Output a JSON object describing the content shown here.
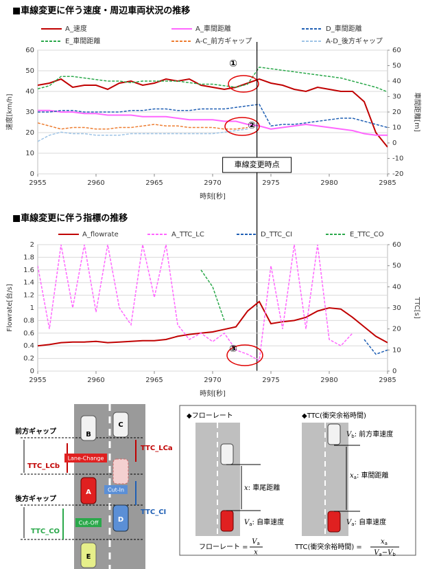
{
  "chart_data": [
    {
      "type": "line",
      "title": "■車線変更に伴う速度・周辺車両状況の推移",
      "x_label": "時刻[秒]",
      "y_label": "速度[km/h]",
      "y2_label": "車間距離[m]",
      "x": [
        2955,
        2956,
        2957,
        2958,
        2959,
        2960,
        2961,
        2962,
        2963,
        2964,
        2965,
        2966,
        2967,
        2968,
        2969,
        2970,
        2971,
        2972,
        2973,
        2974,
        2975,
        2976,
        2977,
        2978,
        2979,
        2980,
        2981,
        2982,
        2983,
        2984,
        2985
      ],
      "xlim": [
        2955,
        2985
      ],
      "xticks": [
        2955,
        2960,
        2965,
        2970,
        2975,
        2980,
        2985
      ],
      "ylim": [
        0,
        60
      ],
      "yticks": [
        0,
        10,
        20,
        30,
        40,
        50,
        60
      ],
      "y2lim": [
        -20,
        60
      ],
      "y2ticks": [
        -20,
        -10,
        0,
        10,
        20,
        30,
        40,
        50,
        60
      ],
      "series": [
        {
          "name": "A_速度",
          "color": "#c00000",
          "style": "solid",
          "values": [
            43,
            44,
            46,
            42,
            43,
            43,
            41,
            44,
            45,
            43,
            44,
            46,
            45,
            46,
            43,
            42,
            41,
            42,
            44,
            46,
            44,
            43,
            41,
            40,
            42,
            41,
            40,
            40,
            35,
            20,
            13
          ]
        },
        {
          "name": "A_車間距離",
          "color": "#ff66ff",
          "style": "solid",
          "axis": "y2",
          "values": [
            21,
            21,
            20,
            20,
            19,
            19,
            18,
            18,
            18,
            17,
            17,
            17,
            16,
            15,
            15,
            15,
            14,
            14,
            12,
            11,
            9,
            10,
            11,
            12,
            11,
            10,
            9,
            8,
            6,
            5,
            5
          ]
        },
        {
          "name": "D_車間距離",
          "color": "#1f5fb4",
          "style": "dashed",
          "axis": "y2",
          "values": [
            20,
            20,
            21,
            21,
            20,
            20,
            20,
            20,
            21,
            21,
            22,
            22,
            21,
            21,
            22,
            22,
            22,
            23,
            24,
            25,
            11,
            12,
            12,
            13,
            14,
            15,
            16,
            16,
            14,
            12,
            10
          ]
        },
        {
          "name": "E_車間距離",
          "color": "#2aa84a",
          "style": "dashed",
          "axis": "y2",
          "values": [
            35,
            37,
            43,
            43,
            42,
            41,
            40,
            40,
            39,
            40,
            40,
            40,
            40,
            39,
            38,
            38,
            37,
            36,
            38,
            49,
            48,
            47,
            46,
            45,
            44,
            43,
            42,
            40,
            38,
            36,
            33
          ]
        },
        {
          "name": "A-C_前方ギャップ",
          "color": "#ed7d31",
          "style": "dashed",
          "axis": "y2",
          "values": [
            13,
            11,
            9,
            10,
            10,
            9,
            9,
            10,
            10,
            11,
            12,
            11,
            11,
            10,
            10,
            10,
            9,
            9,
            10,
            null,
            null,
            null,
            null,
            null,
            null,
            null,
            null,
            null,
            null,
            null,
            null
          ]
        },
        {
          "name": "A-D_後方ギャップ",
          "color": "#9dc3e6",
          "style": "dashed",
          "axis": "y2",
          "values": [
            1,
            5,
            7,
            6,
            6,
            5,
            5,
            5,
            6,
            6,
            6,
            6,
            6,
            6,
            6,
            6,
            7,
            8,
            9,
            null,
            null,
            null,
            null,
            null,
            null,
            null,
            null,
            null,
            null,
            null,
            null
          ]
        }
      ],
      "annotations": [
        "①",
        "②"
      ],
      "lane_change": {
        "label": "車線変更時点",
        "x": 2973.8
      }
    },
    {
      "type": "line",
      "title": "■車線変更に伴う指標の推移",
      "x_label": "時刻[秒]",
      "y_label": "Flowrate[台/s]",
      "y2_label": "TTC[s]",
      "x": [
        2955,
        2956,
        2957,
        2958,
        2959,
        2960,
        2961,
        2962,
        2963,
        2964,
        2965,
        2966,
        2967,
        2968,
        2969,
        2970,
        2971,
        2972,
        2973,
        2974,
        2975,
        2976,
        2977,
        2978,
        2979,
        2980,
        2981,
        2982,
        2983,
        2984,
        2985
      ],
      "xlim": [
        2955,
        2985
      ],
      "xticks": [
        2955,
        2960,
        2965,
        2970,
        2975,
        2980,
        2985
      ],
      "ylim": [
        0,
        2
      ],
      "yticks": [
        0,
        0.2,
        0.4,
        0.6,
        0.8,
        1,
        1.2,
        1.4,
        1.6,
        1.8,
        2
      ],
      "y2lim": [
        0,
        60
      ],
      "y2ticks": [
        0,
        10,
        20,
        30,
        40,
        50,
        60
      ],
      "series": [
        {
          "name": "A_flowrate",
          "color": "#c00000",
          "style": "solid",
          "values": [
            0.4,
            0.42,
            0.45,
            0.46,
            0.46,
            0.47,
            0.45,
            0.46,
            0.47,
            0.48,
            0.48,
            0.5,
            0.55,
            0.58,
            0.6,
            0.62,
            0.66,
            0.7,
            0.95,
            1.1,
            0.75,
            0.78,
            0.8,
            0.85,
            0.95,
            1.0,
            0.98,
            0.85,
            0.7,
            0.55,
            0.45
          ]
        },
        {
          "name": "A_TTC_LC",
          "color": "#ff66ff",
          "style": "dashed",
          "axis": "y2",
          "values": [
            50,
            20,
            60,
            30,
            60,
            28,
            60,
            30,
            22,
            60,
            35,
            60,
            22,
            15,
            18,
            14,
            18,
            10,
            8,
            5,
            50,
            20,
            60,
            20,
            60,
            15,
            12,
            18,
            null,
            null,
            null
          ]
        },
        {
          "name": "D_TTC_CI",
          "color": "#1f5fb4",
          "style": "dashed",
          "axis": "y2",
          "values": [
            null,
            null,
            null,
            null,
            null,
            null,
            null,
            null,
            null,
            null,
            null,
            null,
            null,
            null,
            null,
            null,
            null,
            null,
            null,
            null,
            null,
            null,
            null,
            null,
            null,
            null,
            null,
            null,
            15,
            8,
            10
          ]
        },
        {
          "name": "E_TTC_CO",
          "color": "#2aa84a",
          "style": "dashed",
          "axis": "y2",
          "values": [
            null,
            null,
            null,
            null,
            null,
            null,
            null,
            null,
            null,
            null,
            null,
            null,
            null,
            null,
            48,
            40,
            24,
            null,
            null,
            null,
            null,
            null,
            null,
            null,
            null,
            null,
            null,
            null,
            null,
            null,
            null
          ]
        }
      ],
      "annotations": [
        "③"
      ]
    }
  ],
  "lane_diagram": {
    "front_gap": "前方ギャップ",
    "rear_gap": "後方ギャップ",
    "ttc_lcb": "TTC_LCb",
    "ttc_lca": "TTC_LCa",
    "ttc_ci": "TTC_CI",
    "ttc_co": "TTC_CO",
    "lane_change": "Lane-Change",
    "cut_in": "Cut-In",
    "cut_off": "Cut-Off",
    "cars": [
      "A",
      "B",
      "C",
      "D",
      "E"
    ]
  },
  "formula_box": {
    "flowrate_title": "◆フローレート",
    "ttc_title": "◆TTC(衝突余裕時間)",
    "x_desc": {
      "sym": "x",
      "text": ": 車尾距離"
    },
    "va_desc1": {
      "sym": "V",
      "sub": "a",
      "text": ": 自車速度"
    },
    "vb_desc": {
      "sym": "V",
      "sub": "b",
      "text": ": 前方車速度"
    },
    "xa_desc": {
      "sym": "x",
      "sub": "a",
      "text": ": 車間距離"
    },
    "va_desc2": {
      "sym": "V",
      "sub": "a",
      "text": ": 自車速度"
    },
    "flowrate_formula": {
      "lhs": "フローレート =",
      "num_sym": "V",
      "num_sub": "a",
      "den": "x"
    },
    "ttc_formula": {
      "lhs": "TTC(衝突余裕時間) =",
      "num_sym": "x",
      "num_sub": "a",
      "den_sym1": "V",
      "den_sub1": "a",
      "den_op": "−",
      "den_sym2": "V",
      "den_sub2": "b"
    }
  }
}
